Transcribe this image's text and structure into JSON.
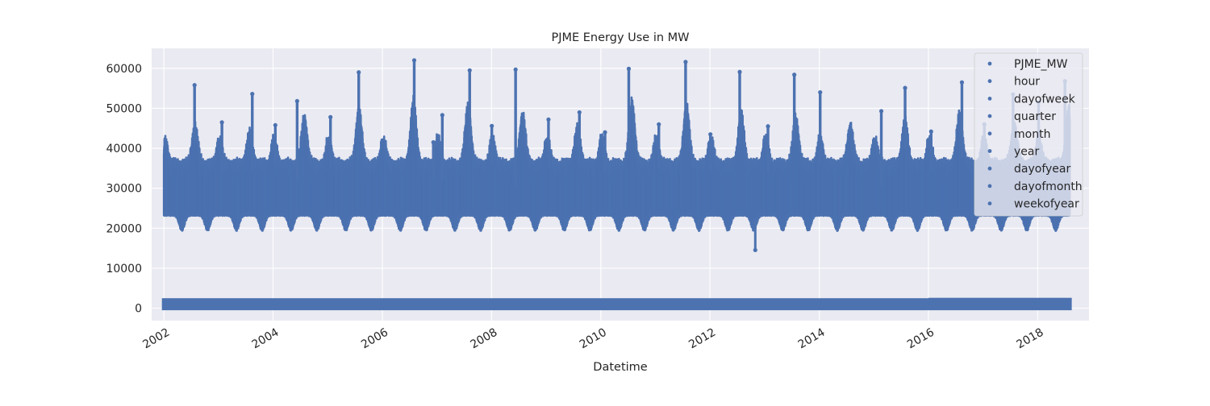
{
  "chart_data": {
    "type": "scatter",
    "title": "PJME Energy Use in MW",
    "xlabel": "Datetime",
    "ylabel": "",
    "x_range": [
      "2001-10-11",
      "2018-12-10"
    ],
    "ylim": [
      -3100,
      65000
    ],
    "x_ticks": [
      "2002",
      "2004",
      "2006",
      "2008",
      "2010",
      "2012",
      "2014",
      "2016",
      "2018"
    ],
    "y_ticks": [
      0,
      10000,
      20000,
      30000,
      40000,
      50000,
      60000
    ],
    "y_tick_labels": [
      "0",
      "10000",
      "20000",
      "30000",
      "40000",
      "50000",
      "60000"
    ],
    "data_x_range": [
      "2002-01-01",
      "2018-08-03"
    ],
    "grid": true,
    "legend_position": "top-right",
    "marker_color": "#4c72b0",
    "background_color": "#eaeaf2",
    "series": [
      {
        "name": "PJME_MW",
        "description_range": [
          14544,
          62009
        ],
        "yearly_peaks": [
          {
            "x": "2002-07-25",
            "y": 55800
          },
          {
            "x": "2003-08-15",
            "y": 53600
          },
          {
            "x": "2004-06-10",
            "y": 51800
          },
          {
            "x": "2005-07-27",
            "y": 59000
          },
          {
            "x": "2006-08-02",
            "y": 62009
          },
          {
            "x": "2007-08-08",
            "y": 59500
          },
          {
            "x": "2008-06-10",
            "y": 59700
          },
          {
            "x": "2009-08-11",
            "y": 49000
          },
          {
            "x": "2010-07-07",
            "y": 59900
          },
          {
            "x": "2011-07-22",
            "y": 61600
          },
          {
            "x": "2012-07-18",
            "y": 59100
          },
          {
            "x": "2013-07-18",
            "y": 58400
          },
          {
            "x": "2014-01-07",
            "y": 54000
          },
          {
            "x": "2015-07-29",
            "y": 55100
          },
          {
            "x": "2016-08-12",
            "y": 56500
          },
          {
            "x": "2017-07-20",
            "y": 53500
          },
          {
            "x": "2018-07-02",
            "y": 56800
          }
        ],
        "summer_mid_levels": [
          {
            "x": "2002-07-15",
            "y": 44000
          },
          {
            "x": "2003-07-15",
            "y": 42000
          },
          {
            "x": "2004-07-15",
            "y": 46000
          },
          {
            "x": "2005-07-15",
            "y": 48000
          },
          {
            "x": "2006-07-15",
            "y": 50000
          },
          {
            "x": "2007-07-15",
            "y": 49000
          },
          {
            "x": "2008-07-15",
            "y": 47000
          },
          {
            "x": "2009-07-15",
            "y": 43000
          },
          {
            "x": "2010-07-15",
            "y": 50000
          },
          {
            "x": "2011-07-15",
            "y": 49000
          },
          {
            "x": "2012-07-15",
            "y": 47000
          },
          {
            "x": "2013-07-15",
            "y": 46000
          },
          {
            "x": "2014-07-15",
            "y": 44000
          },
          {
            "x": "2015-07-15",
            "y": 45000
          },
          {
            "x": "2016-07-15",
            "y": 47000
          },
          {
            "x": "2017-07-15",
            "y": 44000
          },
          {
            "x": "2018-07-15",
            "y": 48000
          }
        ],
        "winter_peaks": [
          {
            "x": "2003-01-24",
            "y": 46500
          },
          {
            "x": "2004-01-16",
            "y": 45800
          },
          {
            "x": "2005-01-19",
            "y": 47800
          },
          {
            "x": "2006-12-08",
            "y": 41500
          },
          {
            "x": "2007-02-06",
            "y": 48300
          },
          {
            "x": "2008-01-03",
            "y": 45600
          },
          {
            "x": "2009-01-16",
            "y": 47200
          },
          {
            "x": "2010-01-29",
            "y": 44000
          },
          {
            "x": "2011-01-24",
            "y": 46000
          },
          {
            "x": "2012-01-04",
            "y": 43500
          },
          {
            "x": "2013-01-23",
            "y": 45500
          },
          {
            "x": "2015-02-20",
            "y": 49300
          },
          {
            "x": "2016-01-19",
            "y": 44200
          },
          {
            "x": "2017-01-09",
            "y": 46000
          },
          {
            "x": "2018-01-07",
            "y": 51500
          }
        ],
        "minimum": {
          "x": "2012-10-30",
          "y": 14544
        }
      },
      {
        "name": "hour",
        "value_range": [
          0,
          23
        ]
      },
      {
        "name": "dayofweek",
        "value_range": [
          0,
          6
        ]
      },
      {
        "name": "quarter",
        "value_range": [
          1,
          4
        ]
      },
      {
        "name": "month",
        "value_range": [
          1,
          12
        ]
      },
      {
        "name": "year",
        "value_range": [
          2002,
          2018
        ]
      },
      {
        "name": "dayofyear",
        "value_range": [
          1,
          366
        ]
      },
      {
        "name": "dayofmonth",
        "value_range": [
          1,
          31
        ]
      },
      {
        "name": "weekofyear",
        "value_range": [
          1,
          53
        ]
      }
    ]
  }
}
